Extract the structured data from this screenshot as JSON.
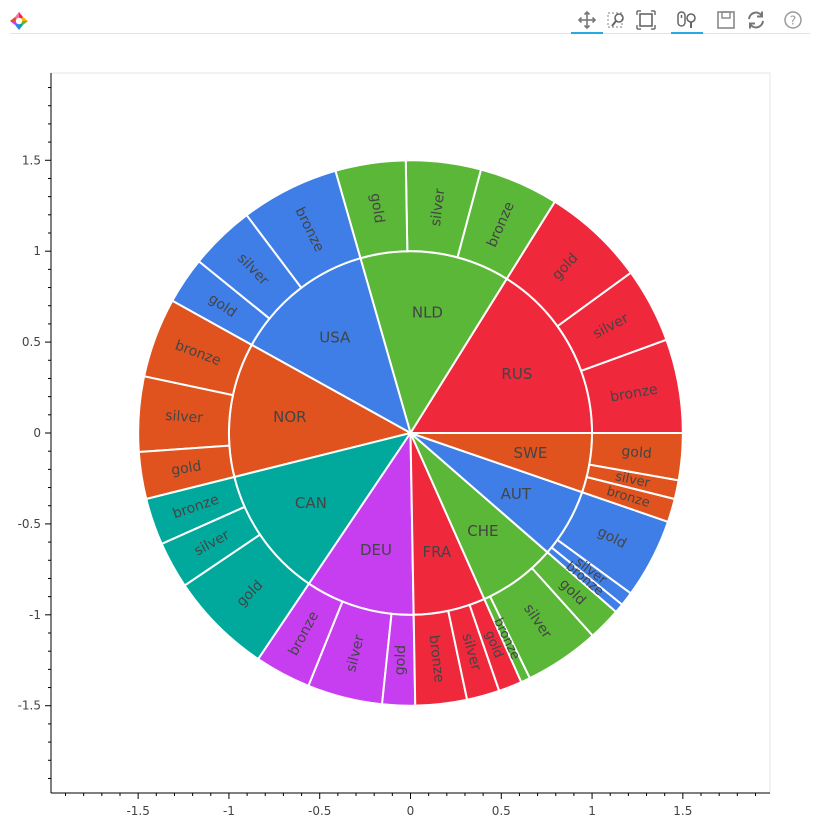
{
  "toolbar": {
    "logo": "bokeh-logo-icon",
    "tools": [
      {
        "name": "pan-tool",
        "icon": "pan-icon",
        "active": true
      },
      {
        "name": "box-zoom-tool",
        "icon": "box-zoom-icon",
        "active": false
      },
      {
        "name": "zoom-to-fit-tool",
        "icon": "zoom-fit-icon",
        "active": false
      },
      {
        "name": "wheel-zoom-tool",
        "icon": "wheel-zoom-icon",
        "active": true
      },
      {
        "name": "save-tool",
        "icon": "save-icon",
        "active": false
      },
      {
        "name": "reset-tool",
        "icon": "reset-icon",
        "active": false
      },
      {
        "name": "help-tool",
        "icon": "help-icon",
        "active": false
      }
    ]
  },
  "chart_data": {
    "type": "sunburst",
    "xlim": [
      -1.98,
      1.98
    ],
    "ylim": [
      -1.98,
      1.98
    ],
    "xticks": [
      -1.5,
      -1,
      -0.5,
      0,
      0.5,
      1,
      1.5
    ],
    "yticks": [
      -1.5,
      -1,
      -0.5,
      0,
      0.5,
      1,
      1.5
    ],
    "xtick_labels": [
      "-1.5",
      "-1",
      "-0.5",
      "0",
      "0.5",
      "1",
      "1.5"
    ],
    "ytick_labels": [
      "-1.5",
      "-1",
      "-0.5",
      "0",
      "0.5",
      "1",
      "1.5"
    ],
    "grid": false,
    "inner_radius": 1.0,
    "outer_radius": 1.5,
    "countries": [
      {
        "name": "RUS",
        "color": "#f0283c",
        "start_deg": 0,
        "end_deg": 58,
        "medals": [
          {
            "label": "bronze",
            "start_deg": 0,
            "end_deg": 20
          },
          {
            "label": "silver",
            "start_deg": 20,
            "end_deg": 36
          },
          {
            "label": "gold",
            "start_deg": 36,
            "end_deg": 58
          }
        ]
      },
      {
        "name": "NLD",
        "color": "#5ab738",
        "start_deg": 58,
        "end_deg": 106,
        "medals": [
          {
            "label": "bronze",
            "start_deg": 58,
            "end_deg": 75
          },
          {
            "label": "silver",
            "start_deg": 75,
            "end_deg": 91
          },
          {
            "label": "gold",
            "start_deg": 91,
            "end_deg": 106
          }
        ]
      },
      {
        "name": "USA",
        "color": "#3f7ee6",
        "start_deg": 106,
        "end_deg": 151,
        "medals": [
          {
            "label": "bronze",
            "start_deg": 106,
            "end_deg": 127
          },
          {
            "label": "silver",
            "start_deg": 127,
            "end_deg": 141
          },
          {
            "label": "gold",
            "start_deg": 141,
            "end_deg": 151
          }
        ]
      },
      {
        "name": "NOR",
        "color": "#e0531f",
        "start_deg": 151,
        "end_deg": 194,
        "medals": [
          {
            "label": "bronze",
            "start_deg": 151,
            "end_deg": 168
          },
          {
            "label": "silver",
            "start_deg": 168,
            "end_deg": 184
          },
          {
            "label": "gold",
            "start_deg": 184,
            "end_deg": 194
          }
        ]
      },
      {
        "name": "CAN",
        "color": "#00a99c",
        "start_deg": 194,
        "end_deg": 236,
        "medals": [
          {
            "label": "bronze",
            "start_deg": 194,
            "end_deg": 204
          },
          {
            "label": "silver",
            "start_deg": 204,
            "end_deg": 214
          },
          {
            "label": "gold",
            "start_deg": 214,
            "end_deg": 236
          }
        ]
      },
      {
        "name": "DEU",
        "color": "#c63ef0",
        "start_deg": 236,
        "end_deg": 271,
        "medals": [
          {
            "label": "bronze",
            "start_deg": 236,
            "end_deg": 248
          },
          {
            "label": "silver",
            "start_deg": 248,
            "end_deg": 264
          },
          {
            "label": "gold",
            "start_deg": 264,
            "end_deg": 271
          }
        ]
      },
      {
        "name": "FRA",
        "color": "#f0283c",
        "start_deg": 271,
        "end_deg": 294,
        "medals": [
          {
            "label": "bronze",
            "start_deg": 271,
            "end_deg": 282
          },
          {
            "label": "silver",
            "start_deg": 282,
            "end_deg": 289
          },
          {
            "label": "gold",
            "start_deg": 289,
            "end_deg": 294
          }
        ]
      },
      {
        "name": "CHE",
        "color": "#5ab738",
        "start_deg": 294,
        "end_deg": 319,
        "medals": [
          {
            "label": "bronze",
            "start_deg": 294,
            "end_deg": 296
          },
          {
            "label": "silver",
            "start_deg": 296,
            "end_deg": 312
          },
          {
            "label": "gold",
            "start_deg": 312,
            "end_deg": 319
          }
        ]
      },
      {
        "name": "AUT",
        "color": "#3f7ee6",
        "start_deg": 319,
        "end_deg": 341,
        "medals": [
          {
            "label": "bronze",
            "start_deg": 319,
            "end_deg": 321
          },
          {
            "label": "silver",
            "start_deg": 321,
            "end_deg": 324
          },
          {
            "label": "gold",
            "start_deg": 324,
            "end_deg": 341
          }
        ]
      },
      {
        "name": "SWE",
        "color": "#e0531f",
        "start_deg": 341,
        "end_deg": 360,
        "medals": [
          {
            "label": "bronze",
            "start_deg": 341,
            "end_deg": 346
          },
          {
            "label": "silver",
            "start_deg": 346,
            "end_deg": 350
          },
          {
            "label": "gold",
            "start_deg": 350,
            "end_deg": 360
          }
        ]
      }
    ]
  }
}
